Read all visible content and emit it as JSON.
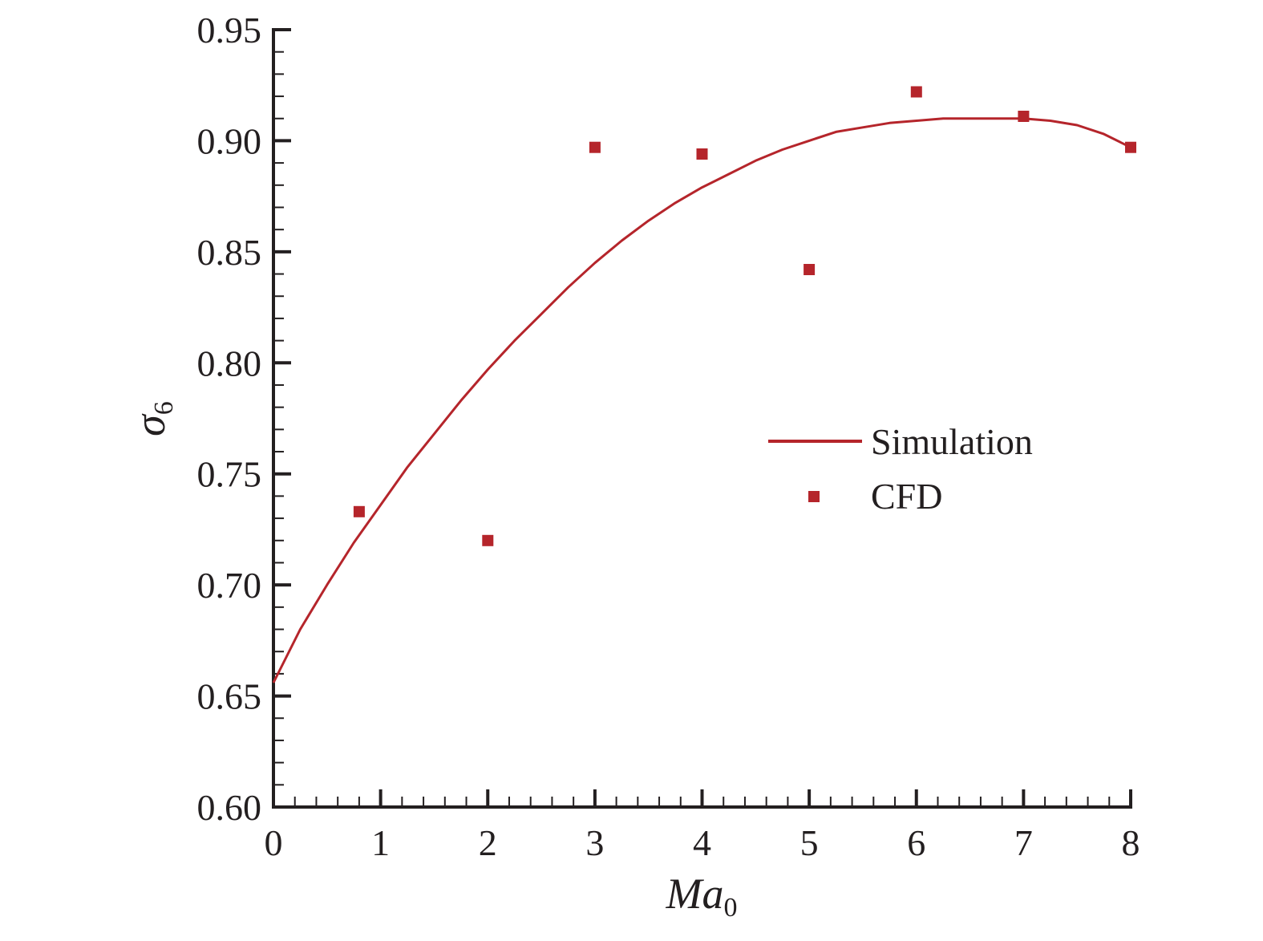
{
  "chart_data": {
    "type": "line",
    "title": "",
    "xlabel": {
      "main": "Ma",
      "sub": "0"
    },
    "ylabel": {
      "main": "σ",
      "sub": "6"
    },
    "xlim": [
      0,
      8
    ],
    "ylim": [
      0.6,
      0.95
    ],
    "x_ticks": [
      "0",
      "1",
      "2",
      "3",
      "4",
      "5",
      "6",
      "7",
      "8"
    ],
    "y_ticks": [
      "0.60",
      "0.65",
      "0.70",
      "0.75",
      "0.80",
      "0.85",
      "0.90",
      "0.95"
    ],
    "grid": false,
    "legend_position": "right-middle",
    "series": [
      {
        "name": "Simulation",
        "style": "line",
        "color": "#b5252b",
        "x": [
          0,
          0.25,
          0.5,
          0.75,
          1.0,
          1.25,
          1.5,
          1.75,
          2.0,
          2.25,
          2.5,
          2.75,
          3.0,
          3.25,
          3.5,
          3.75,
          4.0,
          4.25,
          4.5,
          4.75,
          5.0,
          5.25,
          5.5,
          5.75,
          6.0,
          6.25,
          6.5,
          6.75,
          7.0,
          7.25,
          7.5,
          7.75,
          8.0
        ],
        "y": [
          0.656,
          0.68,
          0.7,
          0.719,
          0.736,
          0.753,
          0.768,
          0.783,
          0.797,
          0.81,
          0.822,
          0.834,
          0.845,
          0.855,
          0.864,
          0.872,
          0.879,
          0.885,
          0.891,
          0.896,
          0.9,
          0.904,
          0.906,
          0.908,
          0.909,
          0.91,
          0.91,
          0.91,
          0.91,
          0.909,
          0.907,
          0.903,
          0.897
        ]
      },
      {
        "name": "CFD",
        "style": "scatter",
        "marker": "square",
        "color": "#b5252b",
        "x": [
          0.8,
          2.0,
          3.0,
          4.0,
          5.0,
          6.0,
          7.0,
          8.0
        ],
        "y": [
          0.733,
          0.72,
          0.897,
          0.894,
          0.842,
          0.922,
          0.911,
          0.897
        ]
      }
    ]
  }
}
